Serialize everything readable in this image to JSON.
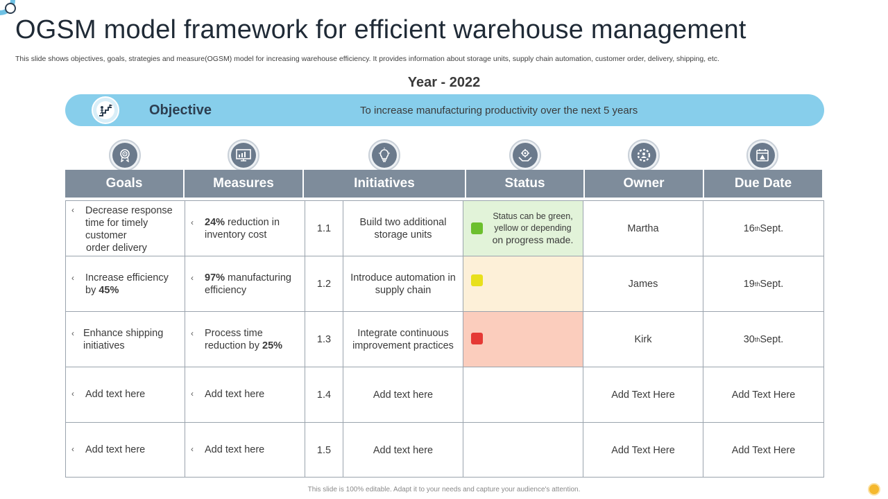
{
  "header": {
    "title": "OGSM model framework for efficient warehouse management",
    "subtitle": "This slide shows objectives, goals, strategies and measure(OGSM) model for increasing warehouse efficiency. It provides information about storage units, supply chain automation, customer order, delivery, shipping, etc."
  },
  "year": "Year - 2022",
  "objective": {
    "label": "Objective",
    "text": "To increase manufacturing  productivity over the next  5 years",
    "icon": "stairs-goal-icon"
  },
  "columns": [
    {
      "label": "Goals",
      "icon": "target-award-icon"
    },
    {
      "label": "Measures",
      "icon": "presentation-chart-icon"
    },
    {
      "label": "Initiatives",
      "icon": "lightbulb-icon"
    },
    {
      "label": "Status",
      "icon": "gear-hand-icon"
    },
    {
      "label": "Owner",
      "icon": "team-gear-icon"
    },
    {
      "label": "Due Date",
      "icon": "calendar-alert-icon"
    }
  ],
  "rows": [
    {
      "goal": "Decrease response time for timely customer order delivery",
      "goal_pre": "Decrease response time for timely customer",
      "goal_post": "order delivery",
      "measure_bold": "24%",
      "measure_rest": " reduction in inventory cost",
      "num": "1.1",
      "initiative": "Build two additional storage units",
      "status": "green",
      "status_color": "#6cbf2e",
      "status_note": "Status can be green, yellow or depending",
      "status_note2": "on  progress made.",
      "owner": "Martha",
      "due_day": "16",
      "due_sup": "th",
      "due_month": " Sept."
    },
    {
      "goal_pre": "Increase efficiency by ",
      "goal_bold": "45%",
      "measure_bold": "97%",
      "measure_rest": " manufacturing efficiency",
      "num": "1.2",
      "initiative": "Introduce automation in supply chain",
      "status": "yellow",
      "status_color": "#e8e01c",
      "owner": "James",
      "due_day": "19",
      "due_sup": "th",
      "due_month": " Sept."
    },
    {
      "goal_pre": "Enhance shipping initiatives",
      "measure_pre": "Process time reduction by ",
      "measure_bold": "25%",
      "num": "1.3",
      "initiative": "Integrate continuous improvement practices",
      "status": "red",
      "status_color": "#e53935",
      "owner": "Kirk",
      "due_day": "30",
      "due_sup": "th",
      "due_month": " Sept."
    },
    {
      "goal_pre": "Add text here",
      "measure_pre": "Add text here",
      "num": "1.4",
      "initiative": "Add text here",
      "owner": "Add Text Here",
      "due": "Add Text Here"
    },
    {
      "goal_pre": "Add text here",
      "measure_pre": "Add text here",
      "num": "1.5",
      "initiative": "Add text here",
      "owner": "Add Text Here",
      "due": "Add Text Here"
    }
  ],
  "bullet_glyph": "‹",
  "footer": "This slide is 100% editable. Adapt it to your needs and capture your audience's attention."
}
